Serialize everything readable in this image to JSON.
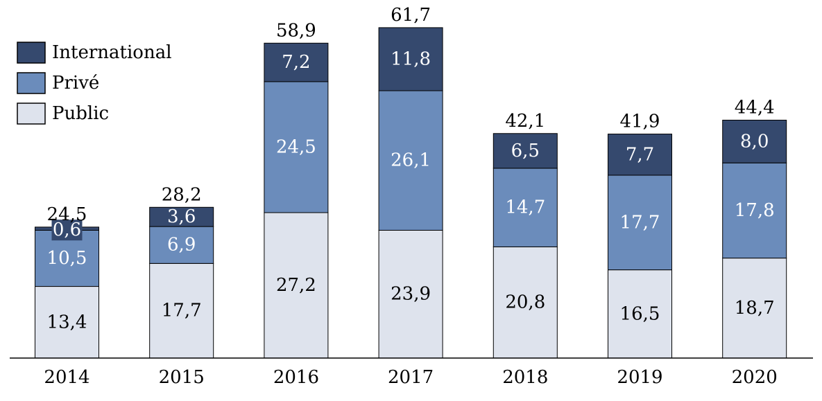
{
  "chart_data": {
    "type": "bar",
    "stacked": true,
    "title": "",
    "xlabel": "",
    "ylabel": "",
    "categories": [
      "2014",
      "2015",
      "2016",
      "2017",
      "2018",
      "2019",
      "2020"
    ],
    "series": [
      {
        "name": "Public",
        "color": "#dee3ed",
        "values": [
          13.4,
          17.7,
          27.2,
          23.9,
          20.8,
          16.5,
          18.7
        ],
        "labels": [
          "13,4",
          "17,7",
          "27,2",
          "23,9",
          "20,8",
          "16,5",
          "18,7"
        ]
      },
      {
        "name": "Privé",
        "color": "#6b8cbb",
        "values": [
          10.5,
          6.9,
          24.5,
          26.1,
          14.7,
          17.7,
          17.8
        ],
        "labels": [
          "10,5",
          "6,9",
          "24,5",
          "26,1",
          "14,7",
          "17,7",
          "17,8"
        ]
      },
      {
        "name": "International",
        "color": "#35496e",
        "values": [
          0.6,
          3.6,
          7.2,
          11.8,
          6.5,
          7.7,
          8.0
        ],
        "labels": [
          "0,6",
          "3,6",
          "7,2",
          "11,8",
          "6,5",
          "7,7",
          "8,0"
        ]
      }
    ],
    "totals": [
      24.5,
      28.2,
      58.9,
      61.7,
      42.1,
      41.9,
      44.4
    ],
    "total_labels": [
      "24,5",
      "28,2",
      "58,9",
      "61,7",
      "42,1",
      "41,9",
      "44,4"
    ],
    "legend": {
      "placement": "top-left",
      "order": [
        "International",
        "Privé",
        "Public"
      ]
    },
    "grid": false
  }
}
